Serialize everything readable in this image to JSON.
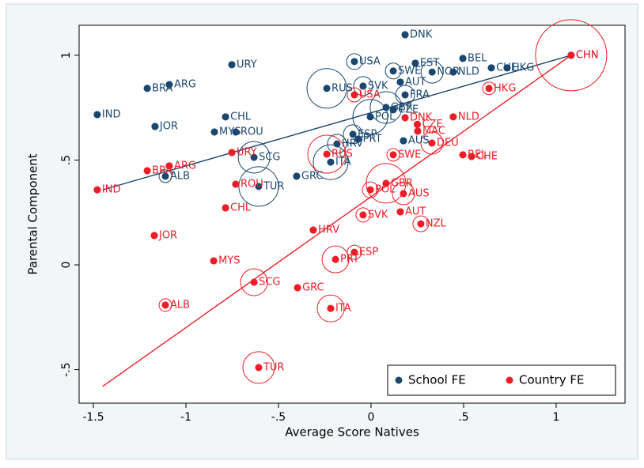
{
  "chart_data": {
    "type": "scatter",
    "x_label": "Average Score Natives",
    "y_label": "Parental Component",
    "xlim": [
      -1.577,
      1.372
    ],
    "ylim": [
      -0.66,
      1.143
    ],
    "xticks": [
      {
        "value": -1.5,
        "label": "-1.5"
      },
      -1,
      {
        "value": -0.5,
        "label": "-.5"
      },
      0,
      {
        "value": 0.5,
        "label": ".5"
      },
      1
    ],
    "yticks": [
      {
        "value": -0.5,
        "label": "-.5"
      },
      0,
      {
        "value": 0.5,
        "label": ".5"
      },
      1
    ],
    "legend": "bottom-right",
    "series": [
      {
        "name": "School FE",
        "color": "#1a476f",
        "labels": [
          "DNK",
          "CHN",
          "BEL",
          "CHE",
          "HKG",
          "EST",
          "USA",
          "NLD",
          "SWE",
          "NOR",
          "AUT",
          "SVK",
          "RUS",
          "FRA",
          "GBR",
          "CZE",
          "POL",
          "CHL",
          "IND",
          "URY",
          "ARG",
          "BRA",
          "JOR",
          "MYS",
          "ROU",
          "HRV",
          "ESP",
          "PRT",
          "AUS",
          "SCG",
          "ITA",
          "GRC",
          "TUR",
          "ALB"
        ],
        "x": [
          0.184,
          1.081,
          0.496,
          0.65,
          0.735,
          0.239,
          -0.09,
          0.444,
          0.12,
          0.33,
          0.158,
          -0.043,
          -0.239,
          0.184,
          0.081,
          0.12,
          -0.004,
          -0.786,
          -1.479,
          -0.752,
          -1.09,
          -1.209,
          -1.167,
          -0.846,
          -0.731,
          -0.184,
          -0.098,
          -0.07,
          0.175,
          -0.632,
          -0.218,
          -0.402,
          -0.607,
          -1.111
        ],
        "values": [
          1.098,
          1.0,
          0.985,
          0.94,
          0.94,
          0.962,
          0.97,
          0.92,
          0.925,
          0.92,
          0.872,
          0.853,
          0.842,
          0.811,
          0.751,
          0.74,
          0.706,
          0.706,
          0.717,
          0.955,
          0.86,
          0.842,
          0.66,
          0.634,
          0.634,
          0.577,
          0.623,
          0.6,
          0.592,
          0.513,
          0.49,
          0.423,
          0.374,
          0.423
        ],
        "sizes": [
          4,
          4,
          4,
          4,
          4,
          4,
          10,
          4,
          10,
          14,
          4,
          12,
          25,
          12,
          20,
          4,
          22,
          4,
          4,
          4,
          4,
          4,
          4,
          4,
          4,
          12,
          12,
          4,
          4,
          20,
          22,
          4,
          25,
          8
        ],
        "fit": {
          "x": [
            -1.45,
            1.081
          ],
          "values": [
            0.358,
            1.0
          ]
        }
      },
      {
        "name": "Country FE",
        "color": "#ee1c25",
        "labels": [
          "CHN",
          "HKG",
          "NLD",
          "DNK",
          "USA",
          "CZE",
          "MAC",
          "DEU",
          "BEL",
          "CHE",
          "SWE",
          "RUS",
          "URY",
          "ARG",
          "BRA",
          "IND",
          "ROU",
          "CHL",
          "POL",
          "GBR",
          "AUS",
          "SVK",
          "AUT",
          "NZL",
          "HRV",
          "JOR",
          "ESP",
          "PRT",
          "MYS",
          "SCG",
          "GRC",
          "ALB",
          "ITA",
          "TUR"
        ],
        "x": [
          1.081,
          0.637,
          0.444,
          0.184,
          -0.09,
          0.25,
          0.252,
          0.329,
          0.496,
          0.543,
          0.12,
          -0.239,
          -0.752,
          -1.09,
          -1.209,
          -1.479,
          -0.731,
          -0.786,
          -0.004,
          0.081,
          0.175,
          -0.043,
          0.158,
          0.269,
          -0.312,
          -1.171,
          -0.09,
          -0.192,
          -0.85,
          -0.632,
          -0.397,
          -1.111,
          -0.218,
          -0.607
        ],
        "values": [
          1.0,
          0.842,
          0.706,
          0.702,
          0.811,
          0.67,
          0.638,
          0.581,
          0.525,
          0.517,
          0.525,
          0.528,
          0.536,
          0.472,
          0.449,
          0.358,
          0.385,
          0.272,
          0.358,
          0.389,
          0.34,
          0.238,
          0.253,
          0.196,
          0.166,
          0.14,
          0.06,
          0.026,
          0.019,
          -0.083,
          -0.109,
          -0.192,
          -0.208,
          -0.49
        ],
        "sizes": [
          45,
          8,
          4,
          4,
          9,
          4,
          4,
          14,
          4,
          4,
          8,
          24,
          4,
          4,
          4,
          4,
          4,
          4,
          10,
          25,
          14,
          9,
          4,
          10,
          4,
          4,
          9,
          17,
          4,
          17,
          4,
          8,
          17,
          20
        ],
        "fit": {
          "x": [
            -1.45,
            1.081
          ],
          "values": [
            -0.58,
            1.0
          ]
        }
      }
    ]
  }
}
